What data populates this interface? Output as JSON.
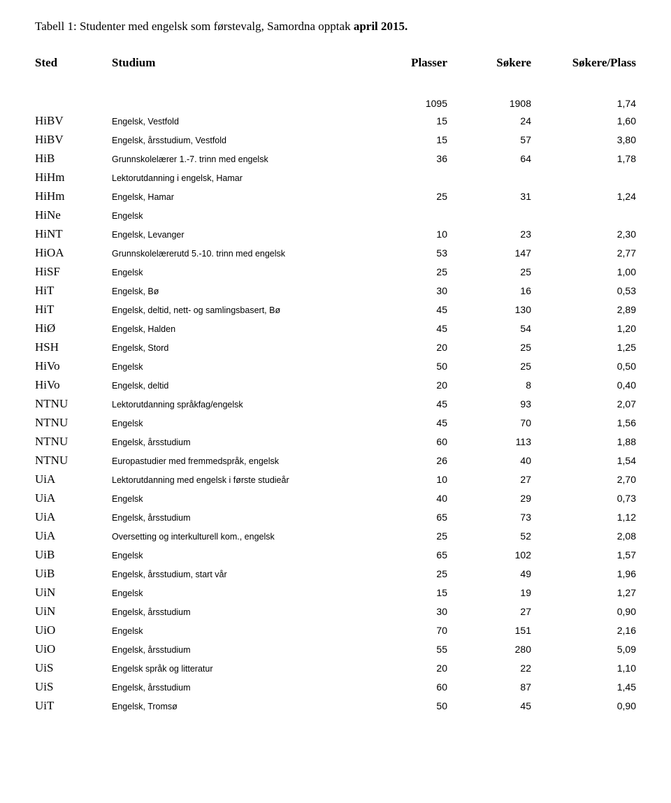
{
  "caption": {
    "prefix": "Tabell 1: Studenter med engelsk som førstevalg, Samordna opptak ",
    "bold": "april 2015."
  },
  "headers": {
    "sted": "Sted",
    "studium": "Studium",
    "plasser": "Plasser",
    "sokere": "Søkere",
    "ratio": "Søkere/Plass"
  },
  "totals": {
    "plasser": "1095",
    "sokere": "1908",
    "ratio": "1,74"
  },
  "rows": [
    {
      "sted": "HiBV",
      "studium": "Engelsk, Vestfold",
      "plasser": "15",
      "sokere": "24",
      "ratio": "1,60"
    },
    {
      "sted": "HiBV",
      "studium": "Engelsk, årsstudium, Vestfold",
      "plasser": "15",
      "sokere": "57",
      "ratio": "3,80"
    },
    {
      "sted": "HiB",
      "studium": "Grunnskolelærer 1.-7. trinn med engelsk",
      "plasser": "36",
      "sokere": "64",
      "ratio": "1,78"
    },
    {
      "sted": "HiHm",
      "studium": "Lektorutdanning i engelsk, Hamar",
      "plasser": "",
      "sokere": "",
      "ratio": ""
    },
    {
      "sted": "HiHm",
      "studium": "Engelsk, Hamar",
      "plasser": "25",
      "sokere": "31",
      "ratio": "1,24"
    },
    {
      "sted": "HiNe",
      "studium": "Engelsk",
      "plasser": "",
      "sokere": "",
      "ratio": ""
    },
    {
      "sted": "HiNT",
      "studium": "Engelsk, Levanger",
      "plasser": "10",
      "sokere": "23",
      "ratio": "2,30"
    },
    {
      "sted": "HiOA",
      "studium": "Grunnskolelærerutd 5.-10. trinn med engelsk",
      "plasser": "53",
      "sokere": "147",
      "ratio": "2,77"
    },
    {
      "sted": "HiSF",
      "studium": "Engelsk",
      "plasser": "25",
      "sokere": "25",
      "ratio": "1,00"
    },
    {
      "sted": "HiT",
      "studium": "Engelsk, Bø",
      "plasser": "30",
      "sokere": "16",
      "ratio": "0,53"
    },
    {
      "sted": "HiT",
      "studium": "Engelsk, deltid, nett- og samlingsbasert, Bø",
      "plasser": "45",
      "sokere": "130",
      "ratio": "2,89"
    },
    {
      "sted": "HiØ",
      "studium": "Engelsk, Halden",
      "plasser": "45",
      "sokere": "54",
      "ratio": "1,20"
    },
    {
      "sted": "HSH",
      "studium": "Engelsk, Stord",
      "plasser": "20",
      "sokere": "25",
      "ratio": "1,25"
    },
    {
      "sted": "HiVo",
      "studium": "Engelsk",
      "plasser": "50",
      "sokere": "25",
      "ratio": "0,50"
    },
    {
      "sted": "HiVo",
      "studium": "Engelsk, deltid",
      "plasser": "20",
      "sokere": "8",
      "ratio": "0,40"
    },
    {
      "sted": "NTNU",
      "studium": "Lektorutdanning språkfag/engelsk",
      "plasser": "45",
      "sokere": "93",
      "ratio": "2,07"
    },
    {
      "sted": "NTNU",
      "studium": "Engelsk",
      "plasser": "45",
      "sokere": "70",
      "ratio": "1,56"
    },
    {
      "sted": "NTNU",
      "studium": "Engelsk, årsstudium",
      "plasser": "60",
      "sokere": "113",
      "ratio": "1,88"
    },
    {
      "sted": "NTNU",
      "studium": "Europastudier med fremmedspråk, engelsk",
      "plasser": "26",
      "sokere": "40",
      "ratio": "1,54"
    },
    {
      "sted": "UiA",
      "studium": "Lektorutdanning med engelsk i første studieår",
      "plasser": "10",
      "sokere": "27",
      "ratio": "2,70"
    },
    {
      "sted": "UiA",
      "studium": "Engelsk",
      "plasser": "40",
      "sokere": "29",
      "ratio": "0,73"
    },
    {
      "sted": "UiA",
      "studium": "Engelsk, årsstudium",
      "plasser": "65",
      "sokere": "73",
      "ratio": "1,12"
    },
    {
      "sted": "UiA",
      "studium": "Oversetting og interkulturell kom., engelsk",
      "plasser": "25",
      "sokere": "52",
      "ratio": "2,08"
    },
    {
      "sted": "UiB",
      "studium": "Engelsk",
      "plasser": "65",
      "sokere": "102",
      "ratio": "1,57"
    },
    {
      "sted": "UiB",
      "studium": "Engelsk, årsstudium, start vår",
      "plasser": "25",
      "sokere": "49",
      "ratio": "1,96"
    },
    {
      "sted": "UiN",
      "studium": "Engelsk",
      "plasser": "15",
      "sokere": "19",
      "ratio": "1,27"
    },
    {
      "sted": "UiN",
      "studium": "Engelsk, årsstudium",
      "plasser": "30",
      "sokere": "27",
      "ratio": "0,90"
    },
    {
      "sted": "UiO",
      "studium": "Engelsk",
      "plasser": "70",
      "sokere": "151",
      "ratio": "2,16"
    },
    {
      "sted": "UiO",
      "studium": "Engelsk, årsstudium",
      "plasser": "55",
      "sokere": "280",
      "ratio": "5,09"
    },
    {
      "sted": "UiS",
      "studium": "Engelsk språk og litteratur",
      "plasser": "20",
      "sokere": "22",
      "ratio": "1,10"
    },
    {
      "sted": "UiS",
      "studium": "Engelsk, årsstudium",
      "plasser": "60",
      "sokere": "87",
      "ratio": "1,45"
    },
    {
      "sted": "UiT",
      "studium": "Engelsk, Tromsø",
      "plasser": "50",
      "sokere": "45",
      "ratio": "0,90"
    }
  ]
}
